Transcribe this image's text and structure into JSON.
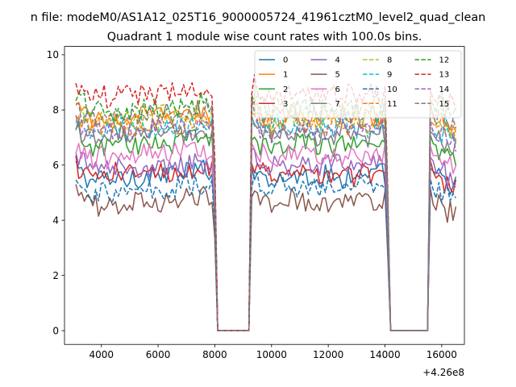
{
  "figure": {
    "suptitle": "n file: modeM0/AS1A12_025T16_9000005724_41961cztM0_level2_quad_clean",
    "title": "Quadrant 1 module wise count rates with 100.0s bins.",
    "offset_label": "+4.26e8"
  },
  "chart_data": {
    "type": "line",
    "title": "Quadrant 1 module wise count rates with 100.0s bins.",
    "xlabel": "",
    "ylabel": "",
    "x_offset": 426000000,
    "xlim": [
      2700,
      16800
    ],
    "ylim": [
      -0.5,
      10.3
    ],
    "xticks": [
      4000,
      6000,
      8000,
      10000,
      12000,
      14000,
      16000
    ],
    "yticks": [
      0,
      2,
      4,
      6,
      8,
      10
    ],
    "xtick_labels": [
      "4000",
      "6000",
      "8000",
      "10000",
      "12000",
      "14000",
      "16000"
    ],
    "ytick_labels": [
      "0",
      "2",
      "4",
      "6",
      "8",
      "10"
    ],
    "grid": false,
    "legend": {
      "placement": "top-right",
      "columns": 4
    },
    "segments": [
      {
        "x_start": 3100,
        "x_end": 7900
      },
      {
        "x_start": 9300,
        "x_end": 14000
      },
      {
        "x_start": 15600,
        "x_end": 16500
      }
    ],
    "gaps": [
      {
        "x_start": 8100,
        "x_end": 9200,
        "value": 0
      },
      {
        "x_start": 14200,
        "x_end": 15500,
        "value": 0
      }
    ],
    "bin_seconds": 100,
    "series": [
      {
        "name": "0",
        "color": "#1f77b4",
        "dash": "solid",
        "level": 5.4,
        "seg1_trend": 0.4
      },
      {
        "name": "1",
        "color": "#ff7f0e",
        "dash": "solid",
        "level": 7.6,
        "seg1_trend": 0.3
      },
      {
        "name": "2",
        "color": "#2ca02c",
        "dash": "solid",
        "level": 6.6,
        "seg1_trend": 0.4
      },
      {
        "name": "3",
        "color": "#d62728",
        "dash": "solid",
        "level": 5.5,
        "seg1_trend": 0.4
      },
      {
        "name": "4",
        "color": "#9467bd",
        "dash": "solid",
        "level": 5.8,
        "seg1_trend": 0.3
      },
      {
        "name": "5",
        "color": "#8c564b",
        "dash": "solid",
        "level": 4.5,
        "seg1_trend": 0.3
      },
      {
        "name": "6",
        "color": "#e377c2",
        "dash": "solid",
        "level": 6.2,
        "seg1_trend": 0.3
      },
      {
        "name": "7",
        "color": "#7f7f7f",
        "dash": "solid",
        "level": 6.9,
        "seg1_trend": 0.3
      },
      {
        "name": "8",
        "color": "#bcbd22",
        "dash": "dashed",
        "level": 7.5,
        "seg1_trend": 0.3
      },
      {
        "name": "9",
        "color": "#17becf",
        "dash": "dashed",
        "level": 7.2,
        "seg1_trend": 0.3
      },
      {
        "name": "10",
        "color": "#1f77b4",
        "dash": "dashed",
        "level": 5.0,
        "seg1_trend": 0.3
      },
      {
        "name": "11",
        "color": "#ff7f0e",
        "dash": "dashed",
        "level": 7.3,
        "seg1_trend": 0.3
      },
      {
        "name": "12",
        "color": "#2ca02c",
        "dash": "dashed",
        "level": 7.9,
        "seg1_trend": 0.3
      },
      {
        "name": "13",
        "color": "#d62728",
        "dash": "dashed",
        "level": 8.4,
        "seg1_trend": 0.3
      },
      {
        "name": "14",
        "color": "#9467bd",
        "dash": "dashed",
        "level": 7.1,
        "seg1_trend": 0.3
      },
      {
        "name": "15",
        "color": "#7f7f7f",
        "dash": "dashed",
        "level": 7.7,
        "seg1_trend": 0.3
      }
    ]
  }
}
